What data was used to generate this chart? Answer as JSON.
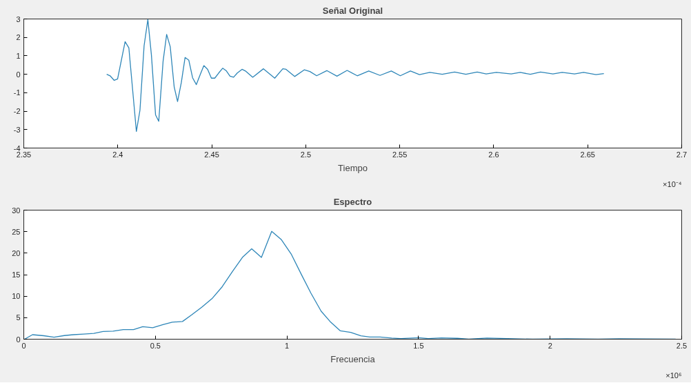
{
  "chart_data": [
    {
      "type": "line",
      "title": "Señal Original",
      "xlabel": "Tiempo",
      "annotations": [
        "×10⁻⁴"
      ],
      "x": [
        2.3941,
        2.3959,
        2.3981,
        2.3999,
        2.4039,
        2.4059,
        2.4099,
        2.4118,
        2.414,
        2.416,
        2.4179,
        2.4201,
        2.4218,
        2.4241,
        2.426,
        2.4279,
        2.43,
        2.4318,
        2.4338,
        2.4358,
        2.4378,
        2.4398,
        2.4418,
        2.4439,
        2.4458,
        2.4478,
        2.4498,
        2.4516,
        2.4537,
        2.4558,
        2.4578,
        2.4597,
        2.4616,
        2.4636,
        2.4661,
        2.4679,
        2.4718,
        2.4775,
        2.4835,
        2.4878,
        2.4895,
        2.4941,
        2.4992,
        2.5022,
        2.5058,
        2.5112,
        2.5166,
        2.522,
        2.5274,
        2.5335,
        2.5395,
        2.5455,
        2.5503,
        2.5557,
        2.5605,
        2.566,
        2.5726,
        2.5792,
        2.5852,
        2.5912,
        2.596,
        2.6014,
        2.6093,
        2.6141,
        2.6195,
        2.6249,
        2.6315,
        2.6364,
        2.643,
        2.6478,
        2.6544,
        2.6586
      ],
      "series": [
        {
          "color": "#2e86b8",
          "values": [
            0.0,
            -0.08,
            -0.33,
            -0.25,
            1.77,
            1.43,
            -3.1,
            -1.95,
            1.55,
            2.97,
            1.04,
            -2.2,
            -2.55,
            0.7,
            2.16,
            1.5,
            -0.68,
            -1.48,
            -0.45,
            0.91,
            0.76,
            -0.19,
            -0.56,
            0.0,
            0.47,
            0.27,
            -0.21,
            -0.21,
            0.07,
            0.33,
            0.18,
            -0.1,
            -0.16,
            0.07,
            0.27,
            0.18,
            -0.16,
            0.3,
            -0.21,
            0.3,
            0.27,
            -0.12,
            0.24,
            0.15,
            -0.08,
            0.2,
            -0.1,
            0.21,
            -0.08,
            0.18,
            -0.06,
            0.18,
            -0.08,
            0.18,
            -0.02,
            0.1,
            0.0,
            0.12,
            0.0,
            0.12,
            0.02,
            0.1,
            0.02,
            0.1,
            0.0,
            0.12,
            0.02,
            0.1,
            0.02,
            0.1,
            -0.02,
            0.04
          ]
        }
      ],
      "xlim": [
        2.35,
        2.7
      ],
      "xticks": [
        2.35,
        2.4,
        2.45,
        2.5,
        2.55,
        2.6,
        2.65,
        2.7
      ],
      "ylim": [
        -4,
        3
      ],
      "yticks": [
        -4,
        -3,
        -2,
        -1,
        0,
        1,
        2,
        3
      ],
      "grid": false,
      "marker": "none",
      "line_style": "solid"
    },
    {
      "type": "line",
      "title": "Espectro",
      "xlabel": "Frecuencia",
      "annotations": [
        "×10⁶"
      ],
      "x": [
        0.003,
        0.033,
        0.076,
        0.115,
        0.154,
        0.188,
        0.227,
        0.266,
        0.301,
        0.339,
        0.378,
        0.417,
        0.452,
        0.49,
        0.529,
        0.564,
        0.603,
        0.637,
        0.676,
        0.715,
        0.754,
        0.793,
        0.832,
        0.866,
        0.903,
        0.942,
        0.978,
        1.017,
        1.056,
        1.091,
        1.13,
        1.164,
        1.203,
        1.242,
        1.281,
        1.315,
        1.354,
        1.398,
        1.433,
        1.502,
        1.537,
        1.587,
        1.648,
        1.691,
        1.76,
        1.839,
        1.933,
        2.063,
        2.183,
        2.262,
        2.364,
        2.477
      ],
      "series": [
        {
          "color": "#2e86b8",
          "values": [
            0,
            1.04,
            0.8,
            0.45,
            0.84,
            1.04,
            1.19,
            1.34,
            1.78,
            1.88,
            2.23,
            2.23,
            2.92,
            2.67,
            3.37,
            3.96,
            4.11,
            5.6,
            7.43,
            9.41,
            12.2,
            15.75,
            19.1,
            21.0,
            19.0,
            25.07,
            23.2,
            19.7,
            14.9,
            10.7,
            6.5,
            4.1,
            1.93,
            1.59,
            0.79,
            0.5,
            0.5,
            0.25,
            0.15,
            0.35,
            0.15,
            0.3,
            0.2,
            0,
            0.25,
            0.15,
            0,
            0.1,
            0,
            0.1,
            0.05,
            0
          ]
        }
      ],
      "xlim": [
        0,
        2.5
      ],
      "xticks": [
        0,
        0.5,
        1,
        1.5,
        2,
        2.5
      ],
      "ylim": [
        0,
        30
      ],
      "yticks": [
        0,
        5,
        10,
        15,
        20,
        25,
        30
      ],
      "grid": false,
      "marker": "none",
      "line_style": "solid"
    }
  ]
}
